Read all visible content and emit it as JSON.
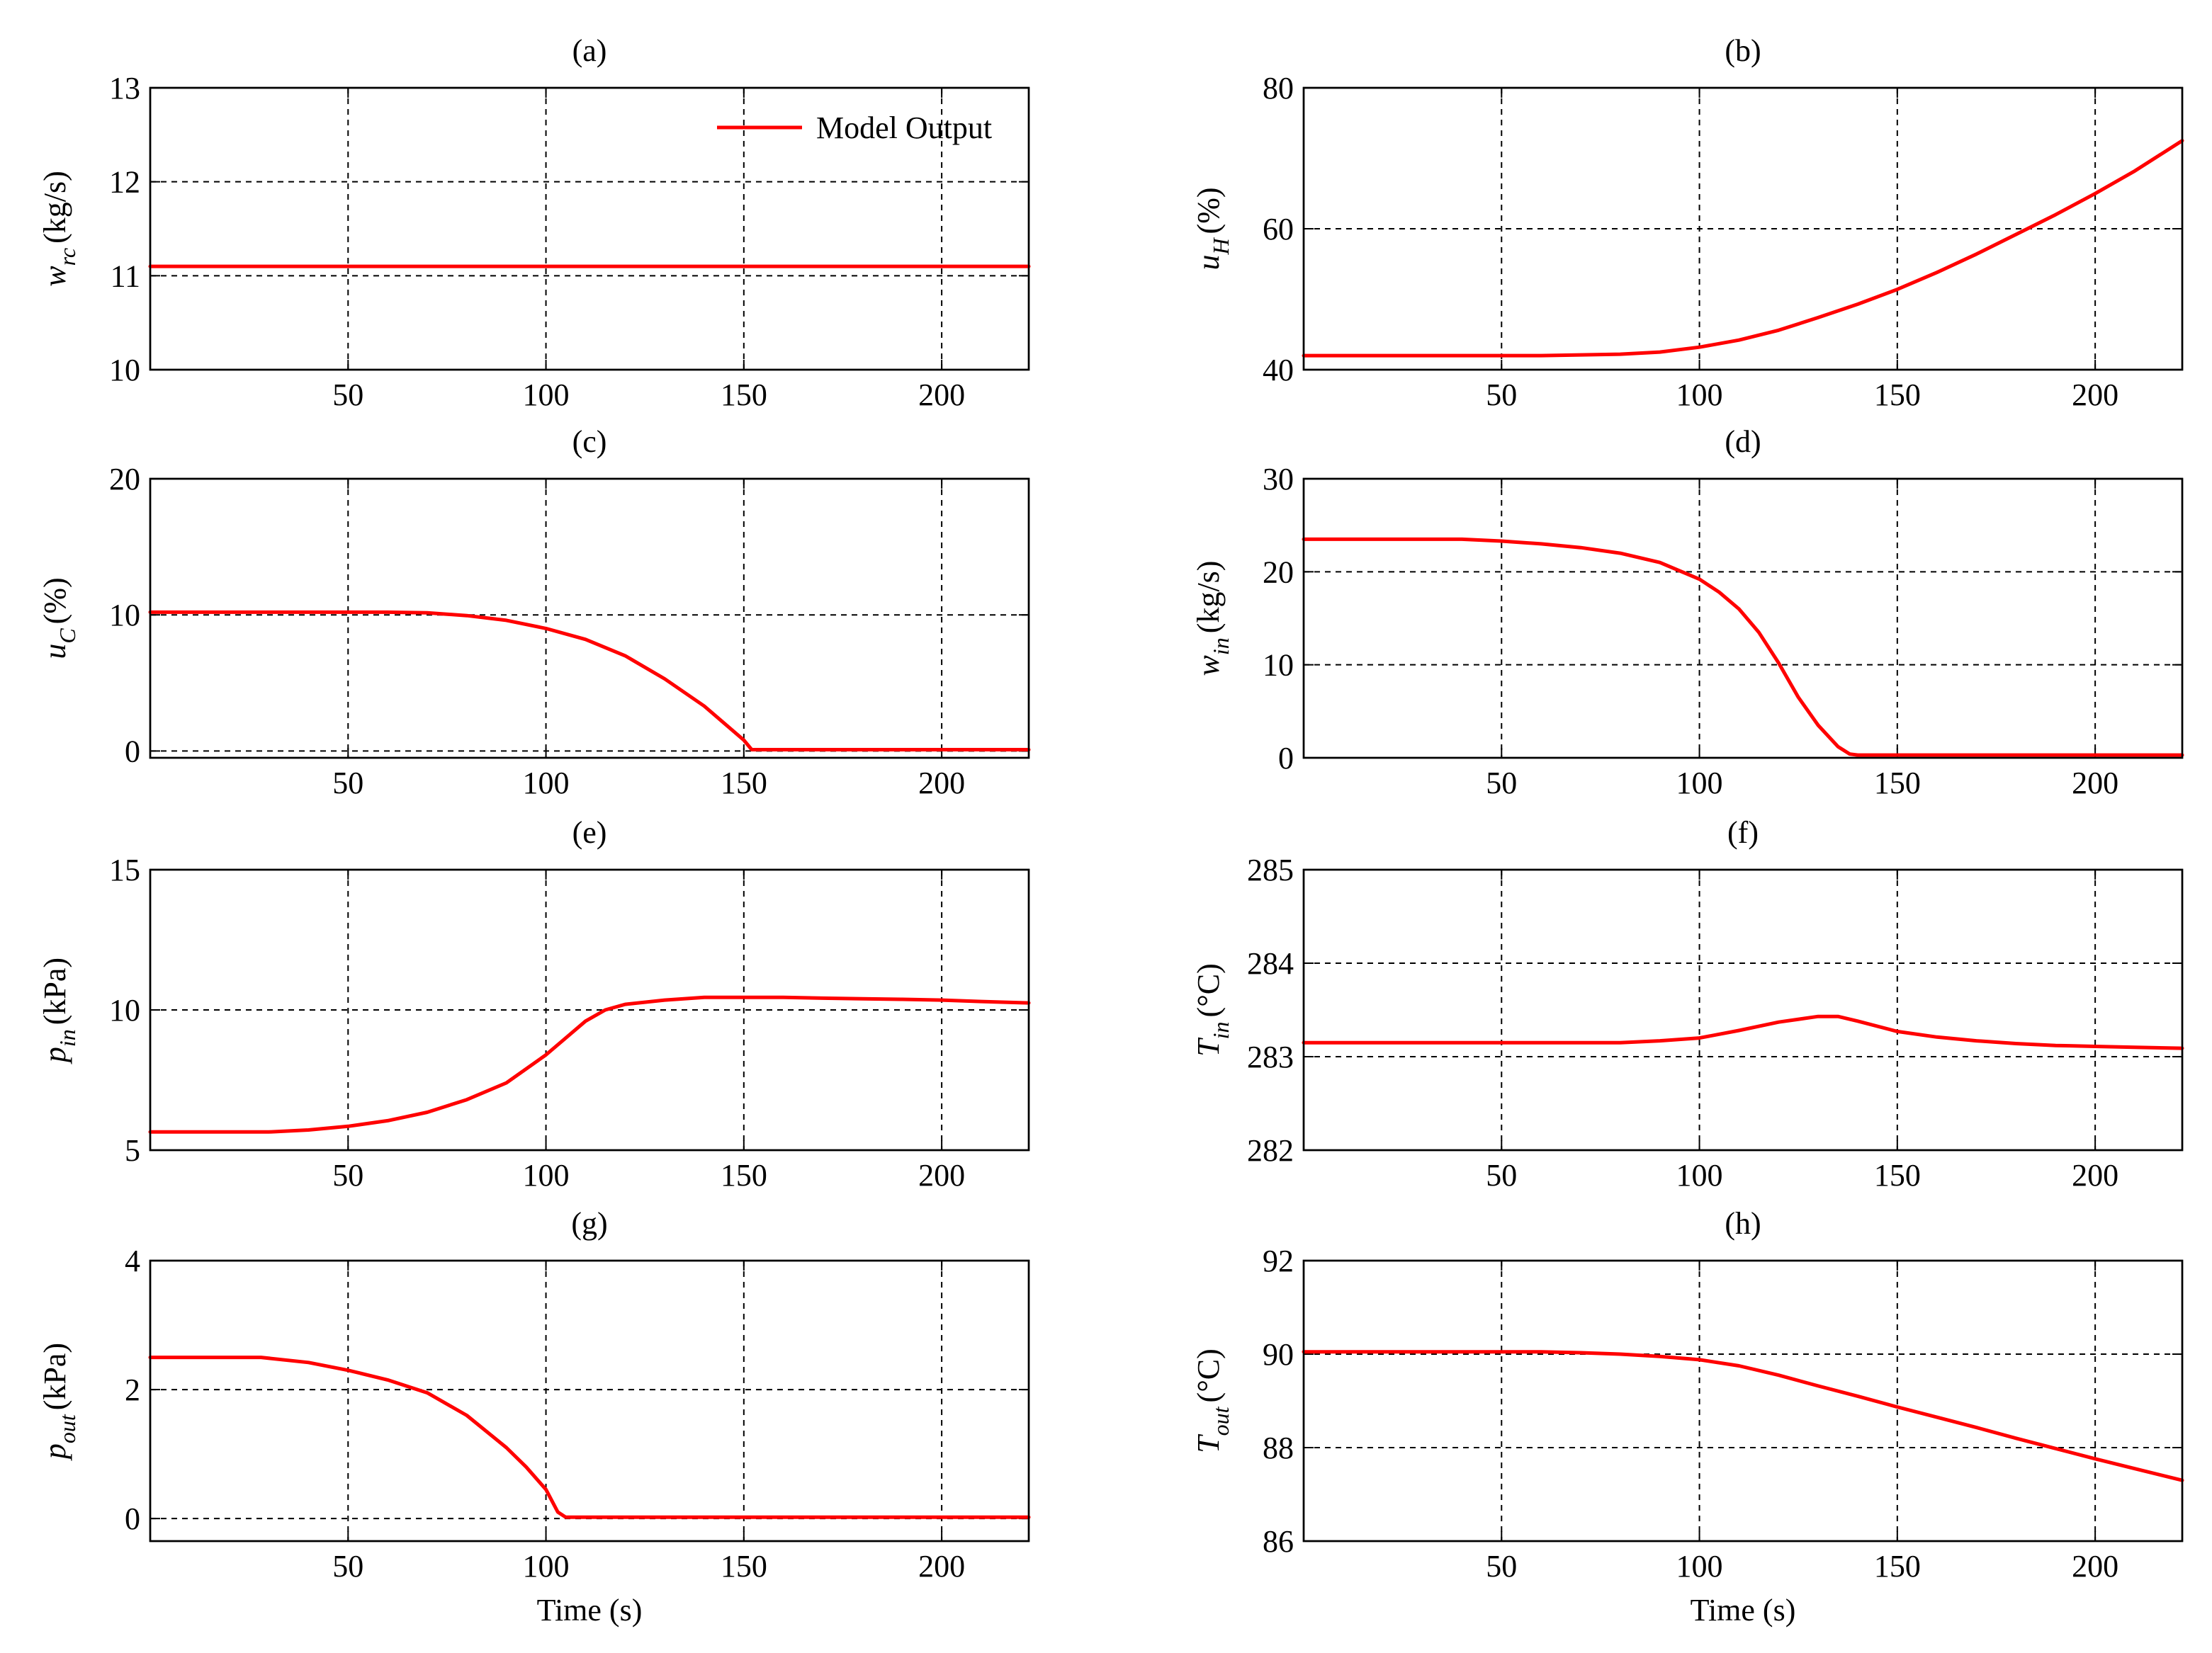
{
  "colors": {
    "series": "#ff0000",
    "axes": "#000000",
    "grid": "#000000",
    "background": "#ffffff"
  },
  "legend": {
    "label": "Model Output",
    "panel": "a",
    "placement": "top-right"
  },
  "chart_data": [
    {
      "id": "a",
      "type": "line",
      "title": "(a)",
      "ylabel": {
        "var": "w",
        "sub": "rc",
        "unit": "(kg/s)"
      },
      "xlabel": "",
      "xlim": [
        0,
        222
      ],
      "ylim": [
        10,
        13
      ],
      "xticks": [
        50,
        100,
        150,
        200
      ],
      "xtick_labels": [
        "50",
        "100",
        "150",
        "200"
      ],
      "yticks": [
        10,
        11,
        12,
        13
      ],
      "ytick_labels": [
        "10",
        "11",
        "12",
        "13"
      ],
      "grid": true,
      "series": [
        {
          "name": "Model Output",
          "x": [
            0,
            222
          ],
          "y": [
            11.1,
            11.1
          ]
        }
      ]
    },
    {
      "id": "b",
      "type": "line",
      "title": "(b)",
      "ylabel": {
        "var": "u",
        "sub": "H",
        "unit": "(%)"
      },
      "xlabel": "",
      "xlim": [
        0,
        222
      ],
      "ylim": [
        40,
        80
      ],
      "xticks": [
        50,
        100,
        150,
        200
      ],
      "xtick_labels": [
        "50",
        "100",
        "150",
        "200"
      ],
      "yticks": [
        40,
        60,
        80
      ],
      "ytick_labels": [
        "40",
        "60",
        "80"
      ],
      "grid": true,
      "series": [
        {
          "name": "Model Output",
          "x": [
            0,
            20,
            40,
            60,
            80,
            90,
            100,
            110,
            120,
            130,
            140,
            150,
            160,
            170,
            180,
            190,
            200,
            210,
            222
          ],
          "y": [
            42,
            42,
            42,
            42,
            42.2,
            42.5,
            43.2,
            44.2,
            45.6,
            47.4,
            49.3,
            51.4,
            53.8,
            56.4,
            59.2,
            62.0,
            65.0,
            68.2,
            72.5
          ]
        }
      ]
    },
    {
      "id": "c",
      "type": "line",
      "title": "(c)",
      "ylabel": {
        "var": "u",
        "sub": "C",
        "unit": "(%)"
      },
      "xlabel": "",
      "xlim": [
        0,
        222
      ],
      "ylim": [
        -0.5,
        20
      ],
      "xticks": [
        50,
        100,
        150,
        200
      ],
      "xtick_labels": [
        "50",
        "100",
        "150",
        "200"
      ],
      "yticks": [
        0,
        10,
        20
      ],
      "ytick_labels": [
        "0",
        "10",
        "20"
      ],
      "grid": true,
      "series": [
        {
          "name": "Model Output",
          "x": [
            0,
            20,
            40,
            60,
            70,
            80,
            90,
            100,
            110,
            120,
            130,
            140,
            150,
            152,
            170,
            190,
            222
          ],
          "y": [
            10.2,
            10.2,
            10.2,
            10.2,
            10.15,
            9.95,
            9.6,
            9.0,
            8.2,
            7.0,
            5.3,
            3.3,
            0.8,
            0.1,
            0.1,
            0.1,
            0.1
          ]
        }
      ]
    },
    {
      "id": "d",
      "type": "line",
      "title": "(d)",
      "ylabel": {
        "var": "w",
        "sub": "in",
        "unit": "(kg/s)"
      },
      "xlabel": "",
      "xlim": [
        0,
        222
      ],
      "ylim": [
        0,
        30
      ],
      "xticks": [
        50,
        100,
        150,
        200
      ],
      "xtick_labels": [
        "50",
        "100",
        "150",
        "200"
      ],
      "yticks": [
        0,
        10,
        20,
        30
      ],
      "ytick_labels": [
        "0",
        "10",
        "20",
        "30"
      ],
      "grid": true,
      "series": [
        {
          "name": "Model Output",
          "x": [
            0,
            20,
            40,
            50,
            60,
            70,
            80,
            90,
            100,
            105,
            110,
            115,
            120,
            125,
            130,
            135,
            138,
            140,
            160,
            222
          ],
          "y": [
            23.5,
            23.5,
            23.5,
            23.3,
            23.0,
            22.6,
            22.0,
            21.0,
            19.2,
            17.8,
            16.0,
            13.5,
            10.2,
            6.5,
            3.5,
            1.2,
            0.4,
            0.3,
            0.3,
            0.3
          ]
        }
      ]
    },
    {
      "id": "e",
      "type": "line",
      "title": "(e)",
      "ylabel": {
        "var": "p",
        "sub": "in",
        "unit": "(kPa)"
      },
      "xlabel": "",
      "xlim": [
        0,
        222
      ],
      "ylim": [
        5,
        15
      ],
      "xticks": [
        50,
        100,
        150,
        200
      ],
      "xtick_labels": [
        "50",
        "100",
        "150",
        "200"
      ],
      "yticks": [
        5,
        10,
        15
      ],
      "ytick_labels": [
        "5",
        "10",
        "15"
      ],
      "grid": true,
      "series": [
        {
          "name": "Model Output",
          "x": [
            0,
            20,
            30,
            40,
            50,
            60,
            70,
            80,
            90,
            100,
            105,
            110,
            115,
            120,
            130,
            140,
            150,
            160,
            170,
            180,
            190,
            200,
            210,
            222
          ],
          "y": [
            5.65,
            5.65,
            5.65,
            5.72,
            5.85,
            6.05,
            6.35,
            6.8,
            7.4,
            8.4,
            9.0,
            9.6,
            10.0,
            10.2,
            10.35,
            10.45,
            10.45,
            10.45,
            10.42,
            10.4,
            10.38,
            10.35,
            10.3,
            10.25
          ]
        }
      ]
    },
    {
      "id": "f",
      "type": "line",
      "title": "(f)",
      "ylabel": {
        "var": "T",
        "sub": "in",
        "unit": "(°C)"
      },
      "xlabel": "",
      "xlim": [
        0,
        222
      ],
      "ylim": [
        282,
        285
      ],
      "xticks": [
        50,
        100,
        150,
        200
      ],
      "xtick_labels": [
        "50",
        "100",
        "150",
        "200"
      ],
      "yticks": [
        282,
        283,
        284,
        285
      ],
      "ytick_labels": [
        "282",
        "283",
        "284",
        "285"
      ],
      "grid": true,
      "series": [
        {
          "name": "Model Output",
          "x": [
            0,
            20,
            40,
            60,
            80,
            90,
            100,
            110,
            120,
            130,
            135,
            140,
            150,
            160,
            170,
            180,
            190,
            200,
            210,
            222
          ],
          "y": [
            283.15,
            283.15,
            283.15,
            283.15,
            283.15,
            283.17,
            283.2,
            283.28,
            283.37,
            283.43,
            283.43,
            283.38,
            283.27,
            283.21,
            283.17,
            283.14,
            283.12,
            283.11,
            283.1,
            283.09
          ]
        }
      ]
    },
    {
      "id": "g",
      "type": "line",
      "title": "(g)",
      "ylabel": {
        "var": "p",
        "sub": "out",
        "unit": "(kPa)"
      },
      "xlabel": "Time (s)",
      "xlim": [
        0,
        222
      ],
      "ylim": [
        -0.35,
        4
      ],
      "xticks": [
        50,
        100,
        150,
        200
      ],
      "xtick_labels": [
        "50",
        "100",
        "150",
        "200"
      ],
      "yticks": [
        0,
        2,
        4
      ],
      "ytick_labels": [
        "0",
        "2",
        "4"
      ],
      "grid": true,
      "series": [
        {
          "name": "Model Output",
          "x": [
            0,
            20,
            28,
            40,
            50,
            60,
            70,
            80,
            90,
            95,
            100,
            103,
            105,
            130,
            160,
            190,
            222
          ],
          "y": [
            2.5,
            2.5,
            2.5,
            2.42,
            2.3,
            2.15,
            1.95,
            1.6,
            1.1,
            0.8,
            0.45,
            0.1,
            0.02,
            0.02,
            0.02,
            0.02,
            0.02
          ]
        }
      ]
    },
    {
      "id": "h",
      "type": "line",
      "title": "(h)",
      "ylabel": {
        "var": "T",
        "sub": "out",
        "unit": "(°C)"
      },
      "xlabel": "Time (s)",
      "xlim": [
        0,
        222
      ],
      "ylim": [
        86,
        92
      ],
      "xticks": [
        50,
        100,
        150,
        200
      ],
      "xtick_labels": [
        "50",
        "100",
        "150",
        "200"
      ],
      "yticks": [
        86,
        88,
        90,
        92
      ],
      "ytick_labels": [
        "86",
        "88",
        "90",
        "92"
      ],
      "grid": true,
      "series": [
        {
          "name": "Model Output",
          "x": [
            0,
            20,
            40,
            60,
            70,
            80,
            90,
            100,
            110,
            120,
            130,
            140,
            150,
            160,
            170,
            180,
            190,
            200,
            210,
            222
          ],
          "y": [
            90.05,
            90.05,
            90.05,
            90.05,
            90.03,
            90.0,
            89.95,
            89.88,
            89.75,
            89.55,
            89.32,
            89.1,
            88.87,
            88.65,
            88.43,
            88.2,
            87.98,
            87.76,
            87.55,
            87.3
          ]
        }
      ]
    }
  ]
}
